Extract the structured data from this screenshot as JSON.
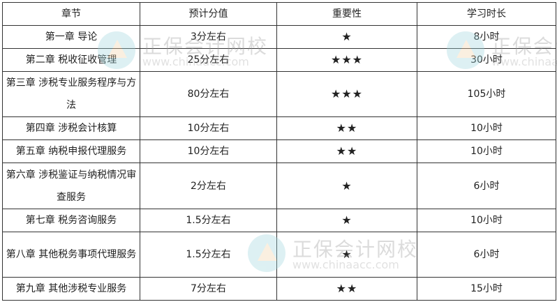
{
  "table": {
    "headers": [
      "章节",
      "预计分值",
      "重要性",
      "学习时长"
    ],
    "rows": [
      {
        "chapter": "第一章  导论",
        "score": "3分左右",
        "importance": "★",
        "stars": 1,
        "hours": "8小时"
      },
      {
        "chapter": "第二章  税收征收管理",
        "score": "25分左右",
        "importance": "★★★",
        "stars": 3,
        "hours": "30小时"
      },
      {
        "chapter": "第三章  涉税专业服务程序与方法",
        "score": "80分左右",
        "importance": "★★★",
        "stars": 3,
        "hours": "105小时"
      },
      {
        "chapter": "第四章  涉税会计核算",
        "score": "10分左右",
        "importance": "★★",
        "stars": 2,
        "hours": "10小时"
      },
      {
        "chapter": "第五章  纳税申报代理服务",
        "score": "10分左右",
        "importance": "★★",
        "stars": 2,
        "hours": "10小时"
      },
      {
        "chapter": "第六章  涉税鉴证与纳税情况审查服务",
        "score": "2分左右",
        "importance": "★",
        "stars": 1,
        "hours": "6小时"
      },
      {
        "chapter": "第七章  税务咨询服务",
        "score": "1.5分左右",
        "importance": "★",
        "stars": 1,
        "hours": "10小时"
      },
      {
        "chapter": "第八章  其他税务事项代理服务",
        "score": "1.5分左右",
        "importance": "★",
        "stars": 1,
        "hours": "6小时"
      },
      {
        "chapter": "第九章  其他涉税专业服务",
        "score": "7分左右",
        "importance": "★★",
        "stars": 2,
        "hours": "15小时"
      }
    ]
  },
  "watermark": {
    "name": "正保会计网校",
    "url": "www.chinaacc.com"
  }
}
